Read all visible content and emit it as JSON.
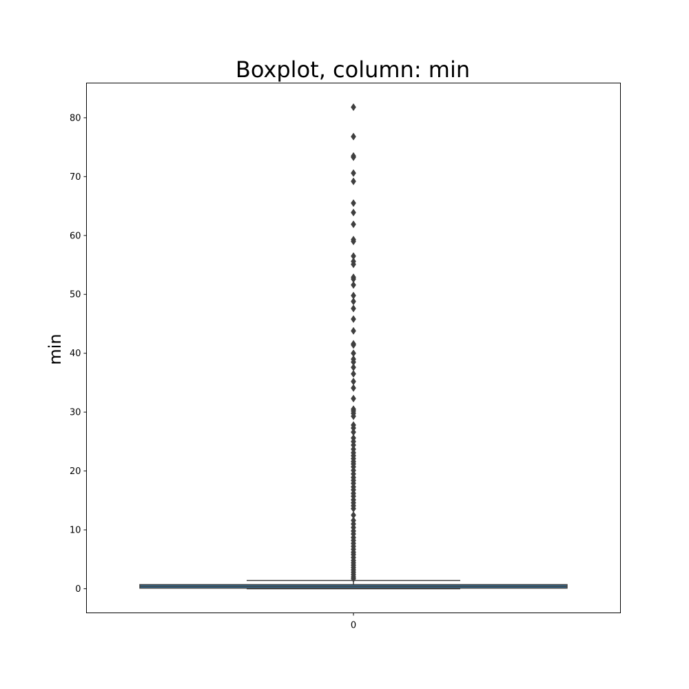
{
  "chart_data": {
    "type": "boxplot",
    "title": "Boxplot, column: min",
    "xlabel": "",
    "ylabel": "min",
    "categories": [
      "0"
    ],
    "ylim": [
      -4.1,
      85.9
    ],
    "yticks": [
      "0",
      "10",
      "20",
      "30",
      "40",
      "50",
      "60",
      "70",
      "80"
    ],
    "grid": false,
    "box": {
      "category": "0",
      "q1": 0.1,
      "median": 0.4,
      "q3": 0.7,
      "whisker_low": 0.0,
      "whisker_high": 1.4
    },
    "outliers": [
      81.8,
      76.8,
      73.5,
      73.3,
      70.6,
      69.2,
      65.5,
      63.9,
      61.9,
      59.3,
      59.0,
      56.5,
      55.6,
      55.1,
      52.9,
      52.6,
      51.6,
      49.8,
      48.8,
      47.6,
      45.8,
      43.8,
      41.6,
      41.4,
      40.0,
      39.0,
      38.5,
      37.6,
      36.5,
      35.2,
      34.1,
      32.3,
      30.5,
      30.2,
      29.8,
      29.3,
      27.8,
      27.3,
      26.6,
      25.6,
      25.0,
      24.4,
      23.7,
      23.1,
      22.6,
      22.1,
      21.6,
      21.2,
      20.7,
      20.1,
      19.5,
      18.9,
      18.4,
      17.9,
      17.3,
      16.8,
      16.2,
      15.7,
      15.1,
      14.6,
      14.1,
      13.6,
      12.5,
      11.6,
      11.0,
      10.4,
      9.8,
      9.3,
      8.7,
      8.2,
      7.7,
      7.2,
      6.7,
      6.2,
      5.8,
      5.3,
      4.8,
      4.4,
      4.0,
      3.6,
      3.2,
      2.8,
      2.4,
      2.0,
      1.7
    ],
    "colors": {
      "box_fill": "#3274a1",
      "box_edge": "#3f3f3f",
      "outlier": "#3f3f3f"
    }
  }
}
